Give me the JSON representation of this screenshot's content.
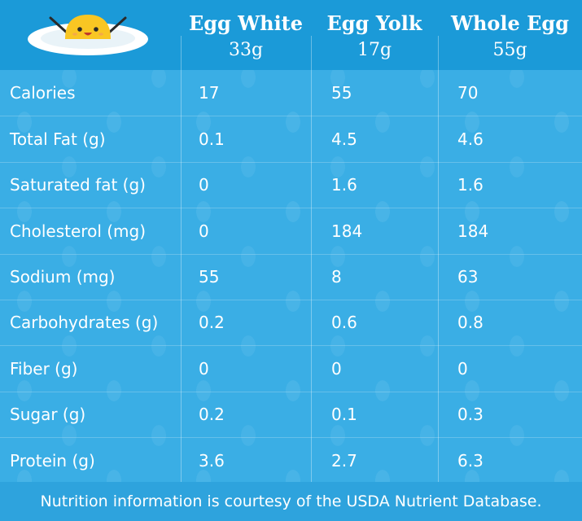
{
  "columns": [
    {
      "name": "Egg White",
      "weight": "33g"
    },
    {
      "name": "Egg Yolk",
      "weight": "17g"
    },
    {
      "name": "Whole Egg",
      "weight": "55g"
    }
  ],
  "rows": [
    {
      "label": "Calories",
      "values": [
        "17",
        "55",
        "70"
      ]
    },
    {
      "label": "Total Fat (g)",
      "values": [
        "0.1",
        "4.5",
        "4.6"
      ]
    },
    {
      "label": "Saturated fat (g)",
      "values": [
        "0",
        "1.6",
        "1.6"
      ]
    },
    {
      "label": "Cholesterol (mg)",
      "values": [
        "0",
        "184",
        "184"
      ]
    },
    {
      "label": "Sodium (mg)",
      "values": [
        "55",
        "8",
        "63"
      ]
    },
    {
      "label": "Carbohydrates (g)",
      "values": [
        "0.2",
        "0.6",
        "0.8"
      ]
    },
    {
      "label": "Fiber (g)",
      "values": [
        "0",
        "0",
        "0"
      ]
    },
    {
      "label": "Sugar (g)",
      "values": [
        "0.2",
        "0.1",
        "0.3"
      ]
    },
    {
      "label": "Protein (g)",
      "values": [
        "3.6",
        "2.7",
        "6.3"
      ]
    }
  ],
  "footer": "Nutrition information is courtesy of the USDA Nutrient Database.",
  "colors": {
    "background": "#3aaee5",
    "header": "#1b9ad8",
    "yolk": "#f9c623"
  },
  "icons": {
    "logo": "smiling-egg-on-plate-icon"
  }
}
